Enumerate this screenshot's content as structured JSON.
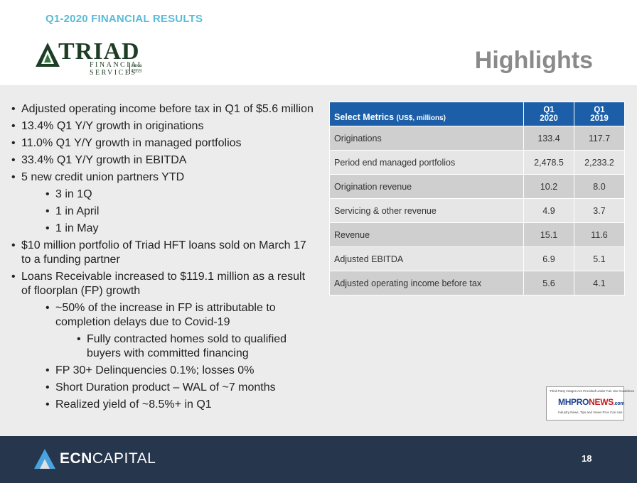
{
  "header": {
    "section_label": "Q1-2020 FINANCIAL RESULTS",
    "logo": {
      "name": "TRIAD",
      "sub1": "FINANCIAL",
      "sub2": "SERVICES",
      "since": "since",
      "year": "1959"
    },
    "title": "Highlights"
  },
  "bullets": [
    {
      "level": 1,
      "text": "Adjusted operating income before tax in Q1 of $5.6 million"
    },
    {
      "level": 1,
      "text": "13.4% Q1 Y/Y growth in originations"
    },
    {
      "level": 1,
      "text": "11.0% Q1 Y/Y growth in managed portfolios"
    },
    {
      "level": 1,
      "text": "33.4% Q1 Y/Y growth in EBITDA"
    },
    {
      "level": 1,
      "text": "5 new credit union partners YTD"
    },
    {
      "level": 2,
      "text": "3 in 1Q"
    },
    {
      "level": 2,
      "text": "1 in April"
    },
    {
      "level": 2,
      "text": "1 in May"
    },
    {
      "level": 1,
      "text": "$10 million portfolio of Triad HFT loans sold on March 17 to a funding partner"
    },
    {
      "level": 1,
      "text": "Loans Receivable increased to $119.1 million as a result of floorplan (FP) growth"
    },
    {
      "level": 2,
      "text": "~50% of the increase in FP is attributable to completion delays due to Covid-19"
    },
    {
      "level": 3,
      "text": "Fully contracted homes sold to qualified buyers with committed financing"
    },
    {
      "level": 2,
      "text": "FP 30+ Delinquencies 0.1%; losses 0%"
    },
    {
      "level": 2,
      "text": "Short Duration product – WAL of ~7 months"
    },
    {
      "level": 2,
      "text": "Realized yield of ~8.5%+ in Q1"
    }
  ],
  "table": {
    "header_label": "Select Metrics",
    "header_units": "(US$, millions)",
    "col1_line1": "Q1",
    "col1_line2": "2020",
    "col2_line1": "Q1",
    "col2_line2": "2019",
    "rows": [
      {
        "metric": "Originations",
        "q1_2020": "133.4",
        "q1_2019": "117.7"
      },
      {
        "metric": "Period end managed portfolios",
        "q1_2020": "2,478.5",
        "q1_2019": "2,233.2"
      },
      {
        "metric": "Origination revenue",
        "q1_2020": "10.2",
        "q1_2019": "8.0"
      },
      {
        "metric": "Servicing & other revenue",
        "q1_2020": "4.9",
        "q1_2019": "3.7"
      },
      {
        "metric": "Revenue",
        "q1_2020": "15.1",
        "q1_2019": "11.6"
      },
      {
        "metric": "Adjusted EBITDA",
        "q1_2020": "6.9",
        "q1_2019": "5.1"
      },
      {
        "metric": "Adjusted operating income before tax",
        "q1_2020": "5.6",
        "q1_2019": "4.1"
      }
    ]
  },
  "badge": {
    "top_text": "Third Party Images Are Provided Under Fair Use Guidelines",
    "logo_a": "MHPRO",
    "logo_b": "NEWS",
    "logo_c": ".com",
    "bottom_text": "Industry News, Tips and Views Pros Can Use"
  },
  "footer": {
    "brand_bold": "ECN",
    "brand_rest": "CAPITAL",
    "page_number": "18"
  },
  "colors": {
    "accent_cyan": "#5bbbd6",
    "table_header_blue": "#1c5fa8",
    "footer_navy": "#26364c",
    "logo_green": "#1e3d25"
  }
}
